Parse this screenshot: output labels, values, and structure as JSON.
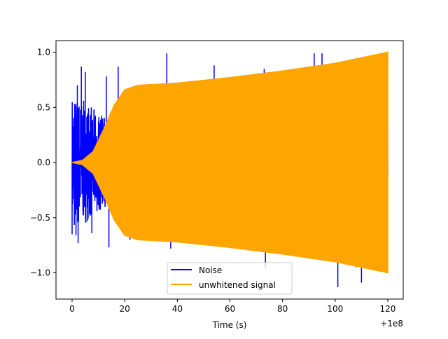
{
  "chart_data": {
    "type": "line",
    "title": "",
    "xlabel": "Time (s)",
    "ylabel": "",
    "x_offset_label": "+1e8",
    "xlim": [
      -5,
      126
    ],
    "ylim": [
      -1.23,
      1.1
    ],
    "xticks": [
      0,
      20,
      40,
      60,
      80,
      100,
      120
    ],
    "xtick_labels": [
      "0",
      "20",
      "40",
      "60",
      "80",
      "100",
      "120"
    ],
    "yticks": [
      -1.0,
      -0.5,
      0.0,
      0.5,
      1.0
    ],
    "ytick_labels": [
      "−1.0",
      "−0.5",
      "0.0",
      "0.5",
      "1.0"
    ],
    "grid": false,
    "legend_placement": "lower center",
    "series": [
      {
        "name": "Noise",
        "color": "#0000ff",
        "spikes": [
          [
            1.5,
            -0.66
          ],
          [
            2,
            0.7
          ],
          [
            2.3,
            -0.73
          ],
          [
            3.5,
            0.87
          ],
          [
            5,
            0.82
          ],
          [
            7.5,
            -0.64
          ],
          [
            13,
            0.78
          ],
          [
            14,
            -0.77
          ],
          [
            17.5,
            0.87
          ],
          [
            22,
            -0.7
          ],
          [
            36,
            0.99
          ],
          [
            37.5,
            -0.78
          ],
          [
            50,
            -0.7
          ],
          [
            54,
            0.88
          ],
          [
            60,
            -0.75
          ],
          [
            63,
            0.76
          ],
          [
            71,
            -0.8
          ],
          [
            73,
            0.85
          ],
          [
            73.5,
            -0.95
          ],
          [
            92,
            0.99
          ],
          [
            95,
            0.99
          ],
          [
            101,
            -1.13
          ],
          [
            108,
            -0.95
          ],
          [
            110,
            -1.09
          ]
        ]
      },
      {
        "name": "unwhitened signal",
        "color": "#ffa500",
        "envelope": [
          [
            0,
            0
          ],
          [
            4,
            0.02
          ],
          [
            8,
            0.1
          ],
          [
            12,
            0.3
          ],
          [
            16,
            0.52
          ],
          [
            20,
            0.66
          ],
          [
            25,
            0.7
          ],
          [
            40,
            0.72
          ],
          [
            60,
            0.77
          ],
          [
            80,
            0.83
          ],
          [
            100,
            0.9
          ],
          [
            120,
            1.0
          ]
        ]
      }
    ]
  }
}
